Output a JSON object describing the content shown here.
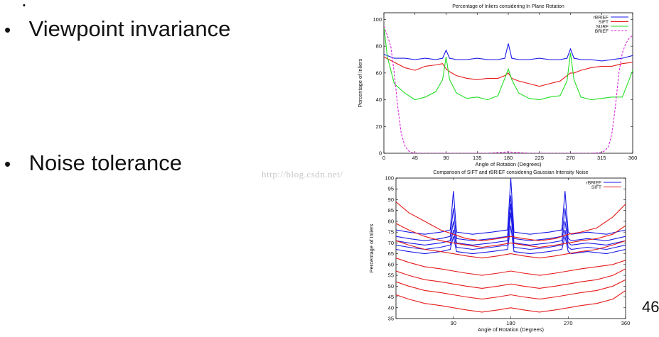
{
  "slide": {
    "top_partial": ".",
    "bullets": [
      {
        "marker": "•",
        "text": "Viewpoint invariance"
      },
      {
        "marker": "•",
        "text": "Noise tolerance"
      }
    ],
    "watermark": "http://blog.csdn.net/",
    "page_number": "46"
  },
  "chart_data": [
    {
      "type": "line",
      "title": "Percentage of Inliers considering In Plane Rotation",
      "xlabel": "Angle of Rotation (Degrees)",
      "ylabel": "Percentage of Inliers",
      "xlim": [
        0,
        360
      ],
      "ylim": [
        0,
        105
      ],
      "xticks": [
        0,
        45,
        90,
        135,
        180,
        225,
        270,
        315,
        360
      ],
      "yticks": [
        0,
        20,
        40,
        60,
        80,
        100
      ],
      "legend_position": "top-right",
      "grid": false,
      "series": [
        {
          "name": "rBRIEF",
          "color": "#1a1ae6",
          "dash": "solid",
          "x": [
            0,
            15,
            30,
            45,
            60,
            75,
            85,
            90,
            95,
            105,
            120,
            135,
            150,
            165,
            175,
            180,
            185,
            195,
            210,
            225,
            240,
            255,
            265,
            270,
            275,
            285,
            300,
            315,
            330,
            345,
            360
          ],
          "y": [
            74,
            71,
            71,
            70,
            71,
            70,
            71,
            77,
            71,
            70,
            70,
            71,
            70,
            70,
            71,
            82,
            71,
            70,
            70,
            71,
            70,
            70,
            71,
            78,
            71,
            70,
            70,
            69,
            70,
            71,
            73
          ]
        },
        {
          "name": "SIFT",
          "color": "#e61a1a",
          "dash": "solid",
          "x": [
            0,
            15,
            30,
            45,
            60,
            75,
            85,
            90,
            95,
            105,
            120,
            135,
            150,
            165,
            175,
            180,
            185,
            195,
            210,
            225,
            240,
            255,
            265,
            270,
            275,
            285,
            300,
            315,
            330,
            345,
            360
          ],
          "y": [
            72,
            68,
            64,
            62,
            65,
            66,
            67,
            63,
            61,
            58,
            56,
            55,
            56,
            56,
            58,
            60,
            56,
            54,
            52,
            50,
            52,
            54,
            58,
            60,
            60,
            62,
            64,
            65,
            65,
            67,
            68
          ]
        },
        {
          "name": "SURF",
          "color": "#22dd22",
          "dash": "solid",
          "x": [
            0,
            5,
            15,
            30,
            45,
            60,
            75,
            85,
            90,
            95,
            105,
            120,
            135,
            150,
            165,
            175,
            180,
            185,
            195,
            210,
            225,
            240,
            255,
            265,
            270,
            275,
            285,
            300,
            315,
            330,
            345,
            355,
            360
          ],
          "y": [
            95,
            72,
            52,
            45,
            40,
            42,
            46,
            55,
            72,
            55,
            45,
            41,
            42,
            40,
            43,
            56,
            63,
            55,
            45,
            41,
            40,
            42,
            43,
            54,
            75,
            55,
            42,
            40,
            41,
            42,
            42,
            55,
            62
          ]
        },
        {
          "name": "BRIEF",
          "color": "#dd22dd",
          "dash": "dashed",
          "x": [
            0,
            5,
            10,
            15,
            20,
            25,
            30,
            35,
            40,
            50,
            60,
            75,
            90,
            120,
            150,
            180,
            210,
            240,
            270,
            300,
            315,
            320,
            325,
            330,
            335,
            340,
            345,
            350,
            355,
            360
          ],
          "y": [
            95,
            88,
            80,
            60,
            35,
            15,
            6,
            2,
            0.5,
            0,
            0,
            0,
            0,
            0,
            0,
            1,
            0,
            0,
            0,
            0,
            0.5,
            2,
            5,
            15,
            35,
            60,
            75,
            82,
            86,
            88
          ]
        }
      ]
    },
    {
      "type": "line",
      "title": "Comparison of SIFT and rBRIEF considering Gaussian Intensity Noise",
      "xlabel": "Angle of Rotation (Degrees)",
      "ylabel": "Percentage of Inliers",
      "xlim": [
        0,
        360
      ],
      "ylim": [
        35,
        100
      ],
      "xticks": [
        90,
        180,
        270,
        360
      ],
      "yticks": [
        35,
        40,
        45,
        50,
        55,
        60,
        65,
        70,
        75,
        80,
        85,
        90,
        95,
        100
      ],
      "legend_position": "top-right",
      "grid": false,
      "series": [
        {
          "name": "rBRIEF",
          "color": "#1a1ae6",
          "dash": "solid",
          "x": [
            0,
            20,
            45,
            70,
            85,
            90,
            95,
            120,
            150,
            175,
            180,
            185,
            210,
            240,
            260,
            265,
            270,
            275,
            300,
            330,
            360
          ],
          "y": [
            76,
            75,
            74,
            75,
            76,
            94,
            75,
            74,
            75,
            76,
            100,
            75,
            74,
            75,
            76,
            94,
            75,
            74,
            75,
            74,
            76
          ]
        },
        {
          "name": "rBRIEF",
          "color": "#1a1ae6",
          "dash": "solid",
          "x": [
            0,
            20,
            45,
            70,
            85,
            90,
            95,
            120,
            150,
            175,
            180,
            185,
            210,
            240,
            260,
            265,
            270,
            275,
            300,
            330,
            360
          ],
          "y": [
            73,
            72,
            71,
            72,
            73,
            86,
            72,
            71,
            72,
            73,
            92,
            72,
            71,
            72,
            73,
            86,
            72,
            71,
            72,
            71,
            73
          ]
        },
        {
          "name": "rBRIEF",
          "color": "#1a1ae6",
          "dash": "solid",
          "x": [
            0,
            20,
            45,
            70,
            85,
            90,
            95,
            120,
            150,
            175,
            180,
            185,
            210,
            240,
            260,
            265,
            270,
            275,
            300,
            330,
            360
          ],
          "y": [
            71,
            70,
            69,
            70,
            71,
            80,
            70,
            69,
            70,
            71,
            88,
            70,
            69,
            70,
            71,
            80,
            70,
            69,
            70,
            69,
            71
          ]
        },
        {
          "name": "rBRIEF",
          "color": "#1a1ae6",
          "dash": "solid",
          "x": [
            0,
            20,
            45,
            70,
            85,
            90,
            95,
            120,
            150,
            175,
            180,
            185,
            210,
            240,
            260,
            265,
            270,
            275,
            300,
            330,
            360
          ],
          "y": [
            69,
            68,
            67,
            68,
            69,
            76,
            68,
            67,
            68,
            69,
            84,
            68,
            67,
            68,
            69,
            76,
            68,
            67,
            68,
            67,
            69
          ]
        },
        {
          "name": "rBRIEF",
          "color": "#1a1ae6",
          "dash": "solid",
          "x": [
            0,
            20,
            45,
            70,
            85,
            90,
            95,
            120,
            150,
            175,
            180,
            185,
            210,
            240,
            260,
            265,
            270,
            275,
            300,
            330,
            360
          ],
          "y": [
            67,
            66,
            65,
            66,
            67,
            73,
            66,
            65,
            66,
            67,
            78,
            66,
            65,
            66,
            67,
            73,
            66,
            65,
            66,
            65,
            67
          ]
        },
        {
          "name": "SIFT",
          "color": "#e61a1a",
          "dash": "solid",
          "x": [
            0,
            20,
            45,
            70,
            90,
            110,
            135,
            160,
            180,
            200,
            225,
            250,
            270,
            290,
            315,
            340,
            360
          ],
          "y": [
            89,
            84,
            80,
            76,
            74,
            72,
            71,
            72,
            73,
            72,
            71,
            72,
            74,
            75,
            77,
            82,
            88
          ]
        },
        {
          "name": "SIFT",
          "color": "#e61a1a",
          "dash": "solid",
          "x": [
            0,
            20,
            45,
            70,
            90,
            110,
            135,
            160,
            180,
            200,
            225,
            250,
            270,
            290,
            315,
            340,
            360
          ],
          "y": [
            79,
            76,
            73,
            71,
            70,
            69,
            68,
            69,
            70,
            69,
            68,
            69,
            70,
            71,
            72,
            74,
            78
          ]
        },
        {
          "name": "SIFT",
          "color": "#e61a1a",
          "dash": "solid",
          "x": [
            0,
            20,
            45,
            70,
            90,
            110,
            135,
            160,
            180,
            200,
            225,
            250,
            270,
            290,
            315,
            340,
            360
          ],
          "y": [
            71,
            69,
            67,
            66,
            65,
            64,
            63,
            64,
            65,
            64,
            63,
            64,
            65,
            66,
            67,
            69,
            71
          ]
        },
        {
          "name": "SIFT",
          "color": "#e61a1a",
          "dash": "solid",
          "x": [
            0,
            20,
            45,
            70,
            90,
            110,
            135,
            160,
            180,
            200,
            225,
            250,
            270,
            290,
            315,
            340,
            360
          ],
          "y": [
            63,
            61,
            59,
            58,
            57,
            56,
            55,
            56,
            57,
            56,
            55,
            56,
            57,
            58,
            59,
            60,
            62
          ]
        },
        {
          "name": "SIFT",
          "color": "#e61a1a",
          "dash": "solid",
          "x": [
            0,
            20,
            45,
            70,
            90,
            110,
            135,
            160,
            180,
            200,
            225,
            250,
            270,
            290,
            315,
            340,
            360
          ],
          "y": [
            57,
            55,
            53,
            52,
            51,
            50,
            49,
            50,
            51,
            50,
            49,
            50,
            51,
            52,
            53,
            55,
            58
          ]
        },
        {
          "name": "SIFT",
          "color": "#e61a1a",
          "dash": "solid",
          "x": [
            0,
            20,
            45,
            70,
            90,
            110,
            135,
            160,
            180,
            200,
            225,
            250,
            270,
            290,
            315,
            340,
            360
          ],
          "y": [
            52,
            50,
            48,
            47,
            46,
            45,
            44,
            45,
            46,
            45,
            44,
            45,
            46,
            47,
            48,
            50,
            53
          ]
        },
        {
          "name": "SIFT",
          "color": "#e61a1a",
          "dash": "solid",
          "x": [
            0,
            20,
            45,
            70,
            90,
            110,
            135,
            160,
            180,
            200,
            225,
            250,
            270,
            290,
            315,
            340,
            360
          ],
          "y": [
            46,
            44,
            42,
            41,
            40,
            39,
            38,
            39,
            40,
            39,
            38,
            39,
            40,
            41,
            42,
            44,
            48
          ]
        }
      ]
    }
  ]
}
